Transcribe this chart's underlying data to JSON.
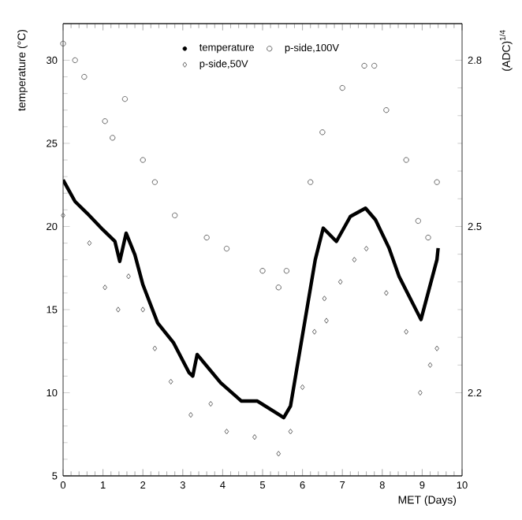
{
  "chart_data": {
    "type": "scatter",
    "xlabel": "MET (Days)",
    "ylabel": "temperature (°C)",
    "y2label": "(ADC)$^{1/4}$",
    "xlim": [
      0,
      10
    ],
    "xticks": [
      0,
      1,
      2,
      3,
      4,
      5,
      6,
      7,
      8,
      9,
      10
    ],
    "ylim": [
      5,
      32.2
    ],
    "yticks": [
      5,
      10,
      15,
      20,
      25,
      30
    ],
    "y2lim": [
      2.05,
      2.866
    ],
    "y2ticks": [
      2.2,
      2.5,
      2.8
    ],
    "legend": "top",
    "grid": false,
    "series": [
      {
        "name": "temperature",
        "type": "line",
        "marker": "none",
        "line_style": "solid",
        "color": "#000000",
        "x": [
          0,
          0.3,
          0.6,
          1.0,
          1.3,
          1.42,
          1.58,
          1.8,
          2.0,
          2.37,
          2.77,
          3.16,
          3.25,
          3.36,
          3.95,
          4.47,
          4.87,
          5.4,
          5.53,
          5.7,
          6.32,
          6.52,
          6.85,
          7.2,
          7.58,
          7.83,
          8.17,
          8.42,
          8.97,
          9.37,
          9.4
        ],
        "values": [
          22.8,
          21.5,
          20.8,
          19.8,
          19.1,
          17.9,
          19.6,
          18.3,
          16.5,
          14.2,
          13.0,
          11.2,
          11.0,
          12.3,
          10.6,
          9.5,
          9.5,
          8.7,
          8.5,
          9.2,
          18.0,
          19.9,
          19.1,
          20.6,
          21.1,
          20.4,
          18.7,
          17.0,
          14.4,
          18.0,
          18.7
        ]
      },
      {
        "name": "p-side,100V",
        "axis": "y2",
        "marker": "circle",
        "color": "#666666",
        "x": [
          0,
          0.3,
          0.53,
          1.05,
          1.24,
          1.55,
          2.0,
          2.3,
          2.8,
          3.6,
          4.1,
          5.0,
          5.4,
          5.6,
          6.2,
          6.5,
          7.0,
          7.55,
          7.8,
          8.1,
          8.6,
          8.9,
          9.15,
          9.37
        ],
        "values": [
          2.83,
          2.8,
          2.77,
          2.69,
          2.66,
          2.73,
          2.62,
          2.58,
          2.52,
          2.48,
          2.46,
          2.42,
          2.39,
          2.42,
          2.58,
          2.67,
          2.75,
          2.79,
          2.79,
          2.71,
          2.62,
          2.51,
          2.48,
          2.58
        ]
      },
      {
        "name": "p-side,50V",
        "axis": "y2",
        "marker": "diamond",
        "color": "#666666",
        "x": [
          0,
          0.66,
          1.05,
          1.38,
          1.64,
          2.0,
          2.3,
          2.7,
          3.2,
          3.7,
          4.1,
          4.8,
          5.4,
          5.7,
          6.0,
          6.3,
          6.55,
          6.6,
          6.95,
          7.3,
          7.6,
          8.1,
          8.6,
          8.95,
          9.2,
          9.37
        ],
        "values": [
          2.52,
          2.47,
          2.39,
          2.35,
          2.41,
          2.35,
          2.28,
          2.22,
          2.16,
          2.18,
          2.13,
          2.12,
          2.09,
          2.13,
          2.21,
          2.31,
          2.37,
          2.33,
          2.4,
          2.44,
          2.46,
          2.38,
          2.31,
          2.2,
          2.25,
          2.28
        ]
      }
    ]
  }
}
